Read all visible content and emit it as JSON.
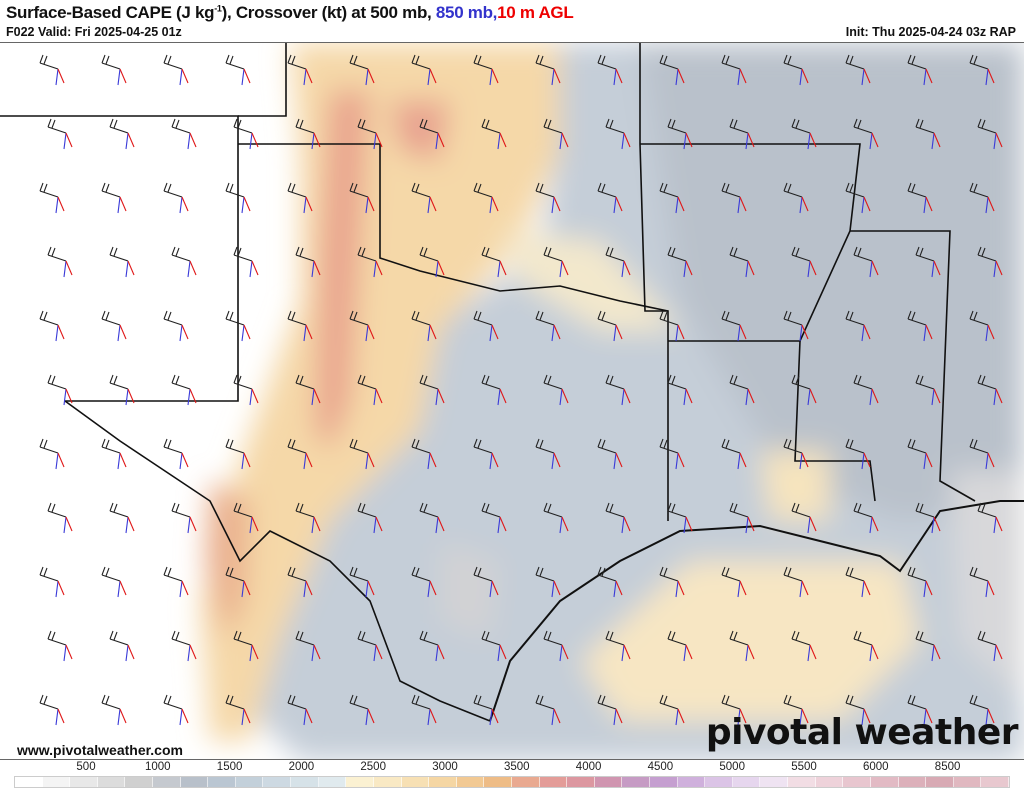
{
  "header": {
    "title_main": "Surface-Based CAPE (J kg",
    "title_sup": "-1",
    "title_rest": "), Crossover (kt) at 500 mb, ",
    "title_blue": "850 mb,",
    "title_red": "10 m AGL",
    "valid": "F022 Valid: Fri 2025-04-25 01z",
    "init": "Init: Thu 2025-04-24 03z RAP"
  },
  "footer": {
    "website": "www.pivotalweather.com",
    "logo": "pivotal weather"
  },
  "colors": {
    "title_blue": "#3333cc",
    "title_red": "#ee0000",
    "barb_500mb": "#222222",
    "barb_850mb": "#3a3ad8",
    "barb_10m": "#e01818"
  },
  "colorbar": {
    "labels": [
      "500",
      "1000",
      "1500",
      "2000",
      "2500",
      "3000",
      "3500",
      "4000",
      "4500",
      "5000",
      "5500",
      "6000",
      "8500"
    ],
    "cells": [
      "#ffffff",
      "#f4f4f4",
      "#e8e8e8",
      "#dcdcdc",
      "#d0d0d0",
      "#c5c9cf",
      "#b8c0ca",
      "#bac6d2",
      "#c3d0da",
      "#cdd9e2",
      "#d6e2e8",
      "#e0eaee",
      "#fbf1d2",
      "#f9e9c4",
      "#f7e0b4",
      "#f5d6a3",
      "#f2c993",
      "#eebc86",
      "#e9a990",
      "#e39c98",
      "#dc97a0",
      "#d095b0",
      "#c69bc4",
      "#c59fd0",
      "#cfb0dc",
      "#dbc4e6",
      "#e6d6ee",
      "#efe3f2",
      "#f2dde4",
      "#eed2da",
      "#e8c6cf",
      "#e2bac4",
      "#dcb0ba",
      "#d8aab4",
      "#e0b8c0",
      "#e8c8cf"
    ]
  }
}
